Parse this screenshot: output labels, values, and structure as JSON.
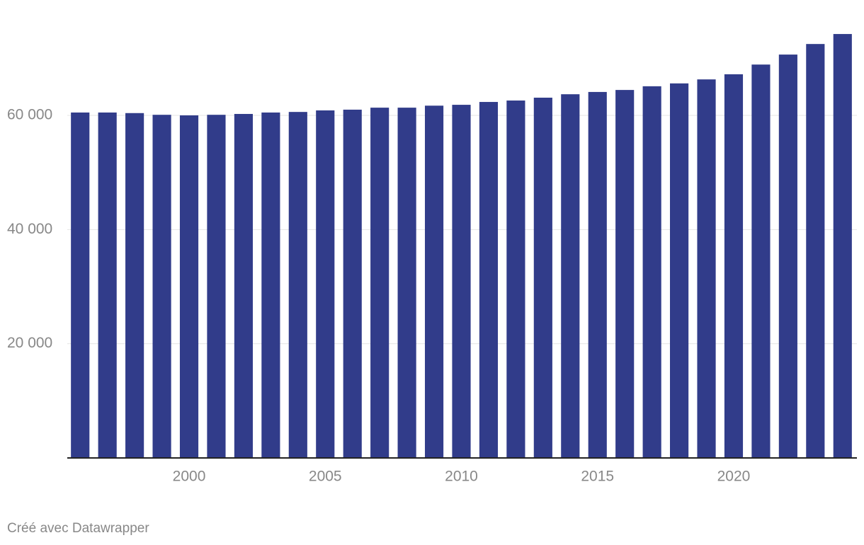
{
  "chart_data": {
    "type": "bar",
    "x": [
      1996,
      1997,
      1998,
      1999,
      2000,
      2001,
      2002,
      2003,
      2004,
      2005,
      2006,
      2007,
      2008,
      2009,
      2010,
      2011,
      2012,
      2013,
      2014,
      2015,
      2016,
      2017,
      2018,
      2019,
      2020,
      2021,
      2022,
      2023,
      2024
    ],
    "values": [
      60500,
      60500,
      60400,
      60100,
      60000,
      60100,
      60250,
      60500,
      60600,
      60870,
      61000,
      61350,
      61350,
      61700,
      61850,
      62350,
      62600,
      63100,
      63700,
      64100,
      64450,
      65100,
      65600,
      66300,
      67200,
      68900,
      70650,
      72500,
      74250
    ],
    "color": "#313c8a",
    "xlim": [
      1995.5,
      2024.5
    ],
    "xticks": [
      2000,
      2005,
      2010,
      2015,
      2020
    ],
    "ylim": [
      0,
      75000
    ],
    "yticks": [
      {
        "value": 20000,
        "label": "20 000"
      },
      {
        "value": 40000,
        "label": "40 000"
      },
      {
        "value": 60000,
        "label": "60 000"
      }
    ],
    "grid": true,
    "footer": "Créé avec Datawrapper"
  }
}
